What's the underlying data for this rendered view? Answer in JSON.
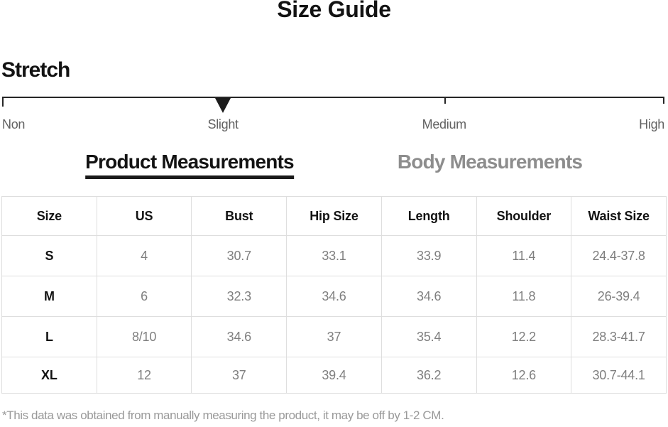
{
  "page": {
    "title": "Size Guide",
    "footnote": "*This data was obtained from manually measuring the product, it may be off by 1-2 CM."
  },
  "stretch": {
    "label": "Stretch",
    "levels": [
      "Non",
      "Slight",
      "Medium",
      "High"
    ],
    "selected": "Slight"
  },
  "tabs": [
    {
      "label": "Product Measurements",
      "active": true
    },
    {
      "label": "Body Measurements",
      "active": false
    }
  ],
  "table": {
    "headers": [
      "Size",
      "US",
      "Bust",
      "Hip Size",
      "Length",
      "Shoulder",
      "Waist Size"
    ],
    "rows": [
      [
        "S",
        "4",
        "30.7",
        "33.1",
        "33.9",
        "11.4",
        "24.4-37.8"
      ],
      [
        "M",
        "6",
        "32.3",
        "34.6",
        "34.6",
        "11.8",
        "26-39.4"
      ],
      [
        "L",
        "8/10",
        "34.6",
        "37",
        "35.4",
        "12.2",
        "28.3-41.7"
      ],
      [
        "XL",
        "12",
        "37",
        "39.4",
        "36.2",
        "12.6",
        "30.7-44.1"
      ]
    ]
  },
  "colors": {
    "text_primary": "#131313",
    "text_muted": "#7f7f7f",
    "tab_inactive": "#8d8d8d",
    "table_border": "#dedede",
    "scale_mark": "#1c1c1c"
  }
}
